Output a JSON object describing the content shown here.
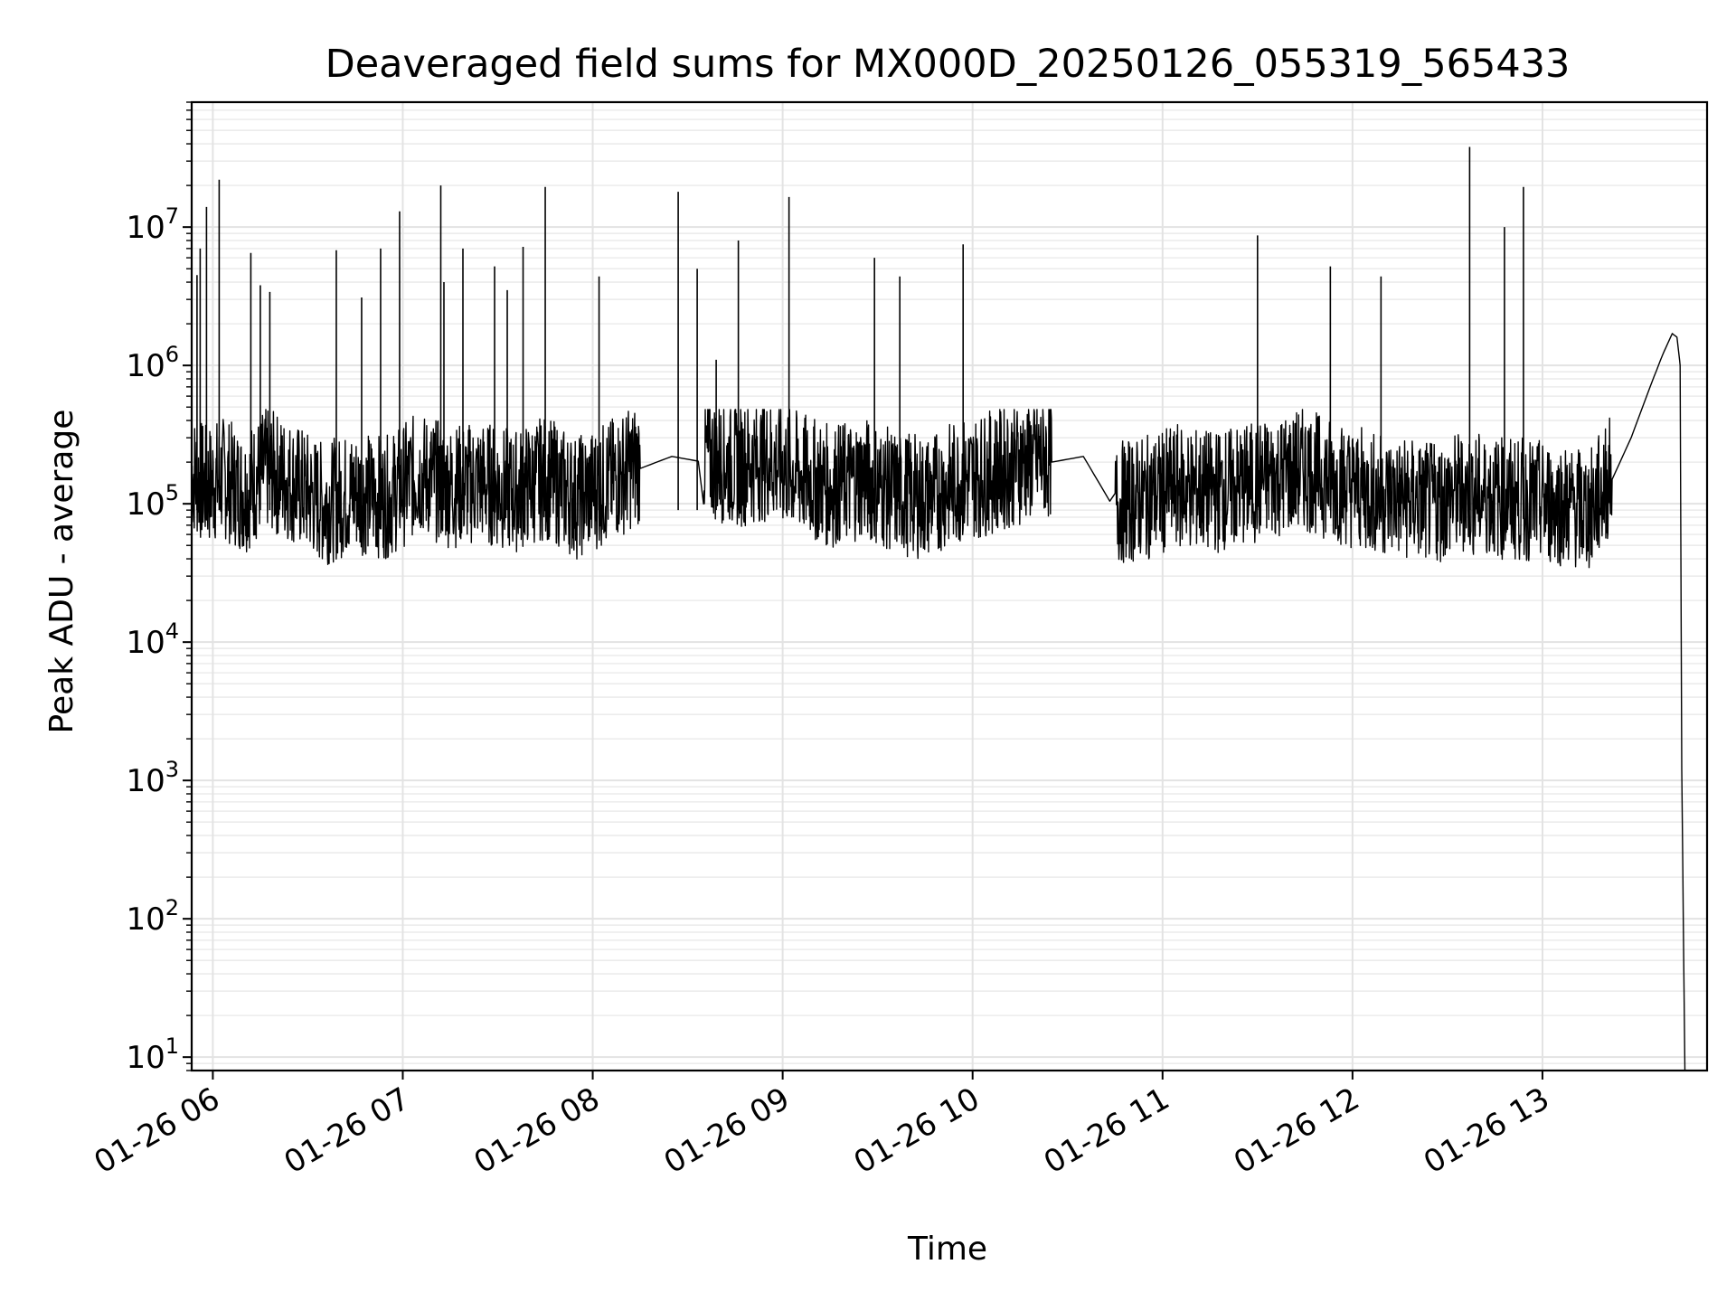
{
  "chart_data": {
    "type": "line",
    "title": "Deaveraged field sums for MX000D_20250126_055319_565433",
    "xlabel": "Time",
    "ylabel": "Peak ADU - average",
    "y_scale": "log",
    "ylim": [
      8,
      80000000
    ],
    "xlim": [
      "2025-01-26 05:53:19",
      "2025-01-26 13:52:00"
    ],
    "x_ticks": [
      {
        "value": "2025-01-26 06:00",
        "label": "01-26 06"
      },
      {
        "value": "2025-01-26 07:00",
        "label": "01-26 07"
      },
      {
        "value": "2025-01-26 08:00",
        "label": "01-26 08"
      },
      {
        "value": "2025-01-26 09:00",
        "label": "01-26 09"
      },
      {
        "value": "2025-01-26 10:00",
        "label": "01-26 10"
      },
      {
        "value": "2025-01-26 11:00",
        "label": "01-26 11"
      },
      {
        "value": "2025-01-26 12:00",
        "label": "01-26 12"
      },
      {
        "value": "2025-01-26 13:00",
        "label": "01-26 13"
      }
    ],
    "y_ticks": [
      {
        "value": 10,
        "base": "10",
        "exp": "1"
      },
      {
        "value": 100,
        "base": "10",
        "exp": "2"
      },
      {
        "value": 1000,
        "base": "10",
        "exp": "3"
      },
      {
        "value": 10000,
        "base": "10",
        "exp": "4"
      },
      {
        "value": 100000,
        "base": "10",
        "exp": "5"
      },
      {
        "value": 1000000,
        "base": "10",
        "exp": "6"
      },
      {
        "value": 10000000,
        "base": "10",
        "exp": "7"
      }
    ],
    "grid": true,
    "line_color": "#000000",
    "series": [
      {
        "x": [
          "2025-01-26 05:53:19",
          "2025-01-26 05:58:00",
          "2025-01-26 06:03:00",
          "2025-01-26 06:10:00",
          "2025-01-26 06:17:00",
          "2025-01-26 06:25:00",
          "2025-01-26 06:35:00",
          "2025-01-26 06:45:00",
          "2025-01-26 06:55:00",
          "2025-01-26 07:05:00",
          "2025-01-26 07:15:00",
          "2025-01-26 07:25:00",
          "2025-01-26 07:35:00",
          "2025-01-26 07:45:00",
          "2025-01-26 07:55:00",
          "2025-01-26 08:05:00",
          "2025-01-26 08:15:00",
          "2025-01-26 08:25:00",
          "2025-01-26 08:35:00",
          "2025-01-26 08:45:00",
          "2025-01-26 08:55:00",
          "2025-01-26 09:05:00",
          "2025-01-26 09:15:00",
          "2025-01-26 09:25:00",
          "2025-01-26 09:35:00",
          "2025-01-26 09:45:00",
          "2025-01-26 09:55:00",
          "2025-01-26 10:05:00",
          "2025-01-26 10:15:00",
          "2025-01-26 10:25:00",
          "2025-01-26 10:35:00",
          "2025-01-26 10:45:00",
          "2025-01-26 10:55:00",
          "2025-01-26 11:05:00",
          "2025-01-26 11:15:00",
          "2025-01-26 11:25:00",
          "2025-01-26 11:35:00",
          "2025-01-26 11:45:00",
          "2025-01-26 11:55:00",
          "2025-01-26 12:05:00",
          "2025-01-26 12:15:00",
          "2025-01-26 12:25:00",
          "2025-01-26 12:35:00",
          "2025-01-26 12:45:00",
          "2025-01-26 12:55:00",
          "2025-01-26 13:05:00",
          "2025-01-26 13:15:00",
          "2025-01-26 13:22:00",
          "2025-01-26 13:28:00",
          "2025-01-26 13:34:00",
          "2025-01-26 13:38:00",
          "2025-01-26 13:41:00",
          "2025-01-26 13:42:30",
          "2025-01-26 13:43:30",
          "2025-01-26 13:44:00",
          "2025-01-26 13:45:00"
        ],
        "y": [
          150000,
          120000,
          140000,
          110000,
          160000,
          130000,
          90000,
          110000,
          100000,
          150000,
          120000,
          130000,
          110000,
          140000,
          100000,
          130000,
          180000,
          220000,
          200000,
          170000,
          190000,
          150000,
          120000,
          140000,
          110000,
          100000,
          130000,
          150000,
          180000,
          200000,
          220000,
          90000,
          100000,
          120000,
          110000,
          120000,
          140000,
          160000,
          130000,
          110000,
          100000,
          90000,
          110000,
          100000,
          95000,
          90000,
          80000,
          150000,
          300000,
          700000,
          1200000,
          1700000,
          1600000,
          1000000,
          1200,
          8
        ]
      }
    ],
    "spikes": [
      {
        "x": "2025-01-26 05:55:00",
        "y": 4500000
      },
      {
        "x": "2025-01-26 05:56:00",
        "y": 7000000
      },
      {
        "x": "2025-01-26 05:58:00",
        "y": 14000000
      },
      {
        "x": "2025-01-26 06:02:00",
        "y": 22000000
      },
      {
        "x": "2025-01-26 06:12:00",
        "y": 6500000
      },
      {
        "x": "2025-01-26 06:15:00",
        "y": 3800000
      },
      {
        "x": "2025-01-26 06:18:00",
        "y": 3400000
      },
      {
        "x": "2025-01-26 06:39:00",
        "y": 6800000
      },
      {
        "x": "2025-01-26 06:47:00",
        "y": 3100000
      },
      {
        "x": "2025-01-26 06:53:00",
        "y": 7000000
      },
      {
        "x": "2025-01-26 06:59:00",
        "y": 13000000
      },
      {
        "x": "2025-01-26 07:12:00",
        "y": 20000000
      },
      {
        "x": "2025-01-26 07:13:00",
        "y": 4000000
      },
      {
        "x": "2025-01-26 07:19:00",
        "y": 7000000
      },
      {
        "x": "2025-01-26 07:29:00",
        "y": 5200000
      },
      {
        "x": "2025-01-26 07:33:00",
        "y": 3500000
      },
      {
        "x": "2025-01-26 07:38:00",
        "y": 7200000
      },
      {
        "x": "2025-01-26 07:45:00",
        "y": 19500000
      },
      {
        "x": "2025-01-26 08:02:00",
        "y": 4400000
      },
      {
        "x": "2025-01-26 08:27:00",
        "y": 18000000
      },
      {
        "x": "2025-01-26 08:33:00",
        "y": 5000000
      },
      {
        "x": "2025-01-26 08:39:00",
        "y": 1100000
      },
      {
        "x": "2025-01-26 08:46:00",
        "y": 8000000
      },
      {
        "x": "2025-01-26 09:02:00",
        "y": 16500000
      },
      {
        "x": "2025-01-26 09:29:00",
        "y": 6000000
      },
      {
        "x": "2025-01-26 09:37:00",
        "y": 4400000
      },
      {
        "x": "2025-01-26 09:57:00",
        "y": 7500000
      },
      {
        "x": "2025-01-26 11:30:00",
        "y": 8700000
      },
      {
        "x": "2025-01-26 11:53:00",
        "y": 5200000
      },
      {
        "x": "2025-01-26 12:09:00",
        "y": 4400000
      },
      {
        "x": "2025-01-26 12:37:00",
        "y": 38000000
      },
      {
        "x": "2025-01-26 12:48:00",
        "y": 10000000
      },
      {
        "x": "2025-01-26 12:54:00",
        "y": 19500000
      }
    ]
  }
}
